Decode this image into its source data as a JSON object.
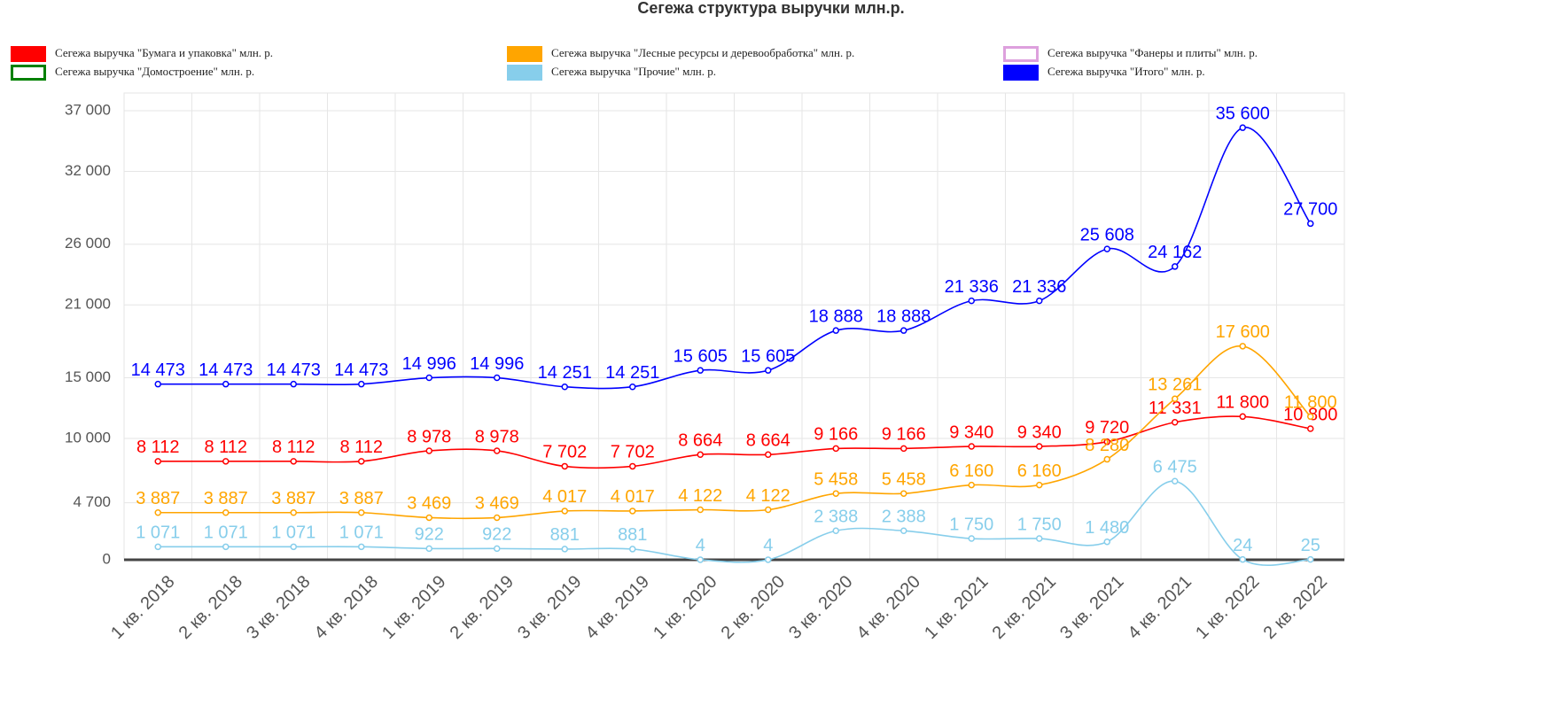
{
  "chart_data": {
    "type": "line",
    "title": "Сегежа структура выручки млн.р.",
    "categories": [
      "1 кв. 2018",
      "2 кв. 2018",
      "3 кв. 2018",
      "4 кв. 2018",
      "1 кв. 2019",
      "2 кв. 2019",
      "3 кв. 2019",
      "4 кв. 2019",
      "1 кв. 2020",
      "2 кв. 2020",
      "3 кв. 2020",
      "4 кв. 2020",
      "1 кв. 2021",
      "2 кв. 2021",
      "3 кв. 2021",
      "4 кв. 2021",
      "1 кв. 2022",
      "2 кв. 2022"
    ],
    "ylim": [
      0,
      37000
    ],
    "yticks": [
      0,
      {
        "value": 4700,
        "label": "4 700"
      },
      {
        "value": 10000,
        "label": "10 000"
      },
      {
        "value": 15000,
        "label": "15 000"
      },
      {
        "value": 21000,
        "label": "21 000"
      },
      {
        "value": 26000,
        "label": "26 000"
      },
      {
        "value": 32000,
        "label": "32 000"
      },
      {
        "value": 37000,
        "label": "37 000"
      }
    ],
    "grid": true,
    "series": [
      {
        "name": "Сегежа выручка \"Бумага и упаковка\" млн. р.",
        "color": "#ff0000",
        "values": [
          8112,
          8112,
          8112,
          8112,
          8978,
          8978,
          7702,
          7702,
          8664,
          8664,
          9166,
          9166,
          9340,
          9340,
          9720,
          11331,
          11800,
          10800
        ],
        "value_labels": [
          "8 112",
          "8 112",
          "8 112",
          "8 112",
          "8 978",
          "8 978",
          "7 702",
          "7 702",
          "8 664",
          "8 664",
          "9 166",
          "9 166",
          "9 340",
          "9 340",
          "9 720",
          "11 331",
          "11 800",
          "10 800"
        ]
      },
      {
        "name": "Сегежа выручка \"Лесные ресурсы и деревообработка\" млн. р.",
        "color": "#ffa500",
        "values": [
          3887,
          3887,
          3887,
          3887,
          3469,
          3469,
          4017,
          4017,
          4122,
          4122,
          5458,
          5458,
          6160,
          6160,
          8280,
          13261,
          17600,
          11800
        ],
        "value_labels": [
          "3 887",
          "3 887",
          "3 887",
          "3 887",
          "3 469",
          "3 469",
          "4 017",
          "4 017",
          "4 122",
          "4 122",
          "5 458",
          "5 458",
          "6 160",
          "6 160",
          "8 280",
          "13 261",
          "17 600",
          "11 800"
        ]
      },
      {
        "name": "Сегежа выручка \"Фанеры и плиты\" млн. р.",
        "color": "#dda0dd",
        "values": [
          null,
          null,
          null,
          null,
          null,
          null,
          null,
          null,
          null,
          null,
          null,
          null,
          null,
          null,
          null,
          null,
          null,
          null
        ]
      },
      {
        "name": "Сегежа выручка \"Домостроение\" млн. р.",
        "color": "#008000",
        "values": [
          null,
          null,
          null,
          null,
          null,
          null,
          null,
          null,
          null,
          null,
          null,
          null,
          null,
          null,
          null,
          null,
          null,
          null
        ]
      },
      {
        "name": "Сегежа выручка \"Прочие\" млн. р.",
        "color": "#87ceeb",
        "values": [
          1071,
          1071,
          1071,
          1071,
          922,
          922,
          881,
          881,
          4,
          4,
          2388,
          2388,
          1750,
          1750,
          1480,
          6475,
          24,
          25
        ],
        "value_labels": [
          "1 071",
          "1 071",
          "1 071",
          "1 071",
          "922",
          "922",
          "881",
          "881",
          "4",
          "4",
          "2 388",
          "2 388",
          "1 750",
          "1 750",
          "1 480",
          "6 475",
          "24",
          "25"
        ]
      },
      {
        "name": "Сегежа выручка \"Итого\" млн. р.",
        "color": "#0000ff",
        "values": [
          14473,
          14473,
          14473,
          14473,
          14996,
          14996,
          14251,
          14251,
          15605,
          15605,
          18888,
          18888,
          21336,
          21336,
          25608,
          24162,
          35600,
          27700
        ],
        "value_labels": [
          "14 473",
          "14 473",
          "14 473",
          "14 473",
          "14 996",
          "14 996",
          "14 251",
          "14 251",
          "15 605",
          "15 605",
          "18 888",
          "18 888",
          "21 336",
          "21 336",
          "25 608",
          "24 162",
          "35 600",
          "27 700"
        ]
      }
    ]
  }
}
